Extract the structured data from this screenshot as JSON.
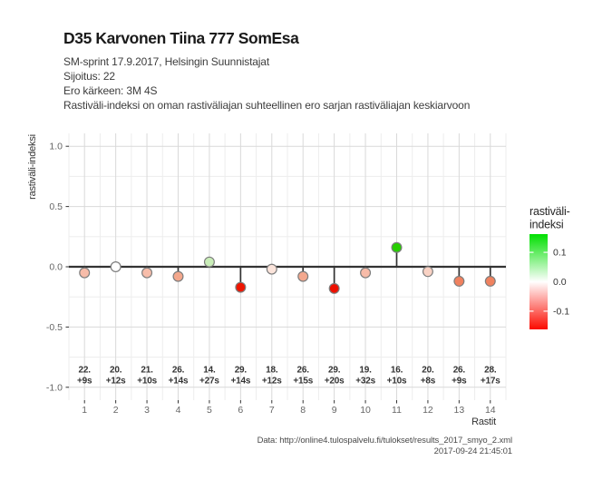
{
  "header": {
    "title": "D35 Karvonen Tiina 777 SomEsa",
    "subtitle_lines": [
      "SM-sprint 17.9.2017, Helsingin Suunnistajat",
      "Sijoitus: 22",
      "Ero kärkeen: 3M 4S",
      "Rastiväli-indeksi on oman rastiväliajan suhteellinen ero sarjan rastiväliajan keskiarvoon"
    ]
  },
  "chart_data": {
    "type": "scatter",
    "title": "",
    "xlabel": "Rastit",
    "ylabel": "rastiväli-indeksi",
    "x": [
      1,
      2,
      3,
      4,
      5,
      6,
      7,
      8,
      9,
      10,
      11,
      12,
      13,
      14
    ],
    "x_tick_labels": [
      "1",
      "2",
      "3",
      "4",
      "5",
      "6",
      "7",
      "8",
      "9",
      "10",
      "11",
      "12",
      "13",
      "14"
    ],
    "values": [
      -0.05,
      0.0,
      -0.05,
      -0.08,
      0.04,
      -0.17,
      -0.02,
      -0.08,
      -0.18,
      -0.05,
      0.16,
      -0.04,
      -0.12,
      -0.12
    ],
    "point_labels": [
      [
        "22.",
        "+9s"
      ],
      [
        "20.",
        "+12s"
      ],
      [
        "21.",
        "+10s"
      ],
      [
        "26.",
        "+14s"
      ],
      [
        "14.",
        "+27s"
      ],
      [
        "29.",
        "+14s"
      ],
      [
        "18.",
        "+12s"
      ],
      [
        "26.",
        "+15s"
      ],
      [
        "29.",
        "+20s"
      ],
      [
        "19.",
        "+32s"
      ],
      [
        "16.",
        "+10s"
      ],
      [
        "20.",
        "+8s"
      ],
      [
        "26.",
        "+9s"
      ],
      [
        "28.",
        "+17s"
      ]
    ],
    "point_colors": [
      "#f7bca9",
      "#ffffff",
      "#f7bdaa",
      "#f3a78c",
      "#c9edb8",
      "#ee1500",
      "#fbe4db",
      "#f3a88e",
      "#ed1000",
      "#f7bba8",
      "#27ce00",
      "#f9d2c4",
      "#f0815f",
      "#f0825f"
    ],
    "y_ticks": [
      1.0,
      0.5,
      0.0,
      -0.5,
      -1.0
    ],
    "y_tick_labels": [
      "1.0",
      "0.5",
      "0.0",
      "-0.5",
      "-1.0"
    ],
    "y_minor": [
      0.75,
      0.25,
      -0.25,
      -0.75
    ],
    "ylim": [
      -1.107,
      1.107
    ],
    "grid": true,
    "legend": {
      "position": "right",
      "title_lines": [
        "rastiväli-",
        "indeksi"
      ],
      "gradient": [
        "#00df00",
        "#ffffff",
        "#fb0b00"
      ],
      "range": [
        -0.162,
        0.162
      ],
      "ticks": [
        0.1,
        0.0,
        -0.1
      ],
      "tick_labels": [
        "0.1",
        "0.0",
        "-0.1"
      ]
    },
    "colors": {
      "grid_major": "#d9d9d9",
      "grid_minor": "#ededed",
      "axis_text": "#666666",
      "line": "#333333",
      "point_stroke": "#7d7d7d",
      "annotation_text": "#333333"
    }
  },
  "footer": {
    "lines": [
      "Data: http://online4.tulospalvelu.fi/tulokset/results_2017_smyo_2.xml",
      "2017-09-24 21:45:01"
    ]
  }
}
